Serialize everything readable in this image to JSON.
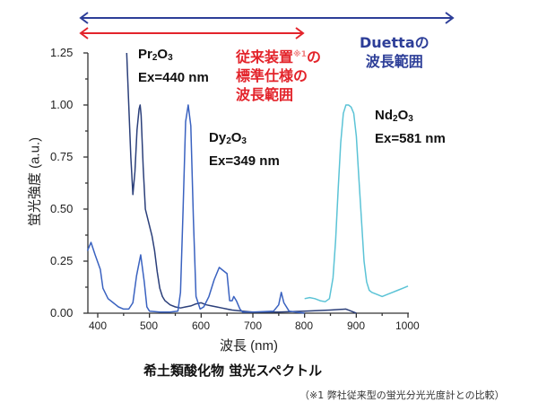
{
  "chart_data": {
    "type": "line",
    "title": "希土類酸化物 蛍光スペクトル",
    "xlabel": "波長 (nm)",
    "ylabel": "蛍光強度 (a.u.)",
    "xlim": [
      380,
      1000
    ],
    "ylim": [
      0,
      1.25
    ],
    "xticks": [
      400,
      500,
      600,
      700,
      800,
      900,
      1000
    ],
    "xtick_labels": [
      "400",
      "500",
      "600",
      "700",
      "800",
      "900",
      "1000"
    ],
    "yticks": [
      0,
      0.25,
      0.5,
      0.75,
      1.0,
      1.25
    ],
    "ytick_labels": [
      "0.00",
      "0.25",
      "0.50",
      "0.75",
      "1.00",
      "1.25"
    ],
    "grid": false,
    "series": [
      {
        "name": "Pr2O3 (Ex=440 nm)",
        "color": "#2b3f7a",
        "x": [
          456,
          460,
          464,
          468,
          472,
          476,
          480,
          482,
          484,
          488,
          492,
          496,
          500,
          505,
          510,
          515,
          520,
          525,
          530,
          540,
          550,
          560,
          570,
          580,
          590,
          600,
          610,
          620,
          630,
          640,
          650,
          660,
          680,
          700,
          750,
          800,
          850,
          880,
          890,
          900
        ],
        "y": [
          1.25,
          1.0,
          0.75,
          0.57,
          0.68,
          0.88,
          0.98,
          1.0,
          0.95,
          0.7,
          0.5,
          0.46,
          0.42,
          0.37,
          0.3,
          0.2,
          0.12,
          0.08,
          0.06,
          0.04,
          0.03,
          0.025,
          0.03,
          0.035,
          0.045,
          0.05,
          0.04,
          0.035,
          0.03,
          0.025,
          0.02,
          0.015,
          0.01,
          0.005,
          0.005,
          0.01,
          0.015,
          0.02,
          0.01,
          0.0
        ]
      },
      {
        "name": "Dy2O3 (Ex=349 nm)",
        "color": "#3a62c0",
        "x": [
          380,
          387,
          395,
          405,
          410,
          420,
          430,
          440,
          450,
          460,
          468,
          475,
          483,
          490,
          495,
          500,
          520,
          540,
          555,
          560,
          565,
          570,
          575,
          580,
          585,
          590,
          598,
          605,
          615,
          625,
          635,
          645,
          650,
          655,
          660,
          663,
          668,
          675,
          680,
          700,
          740,
          750,
          755,
          760,
          770,
          800
        ],
        "y": [
          0.3,
          0.34,
          0.28,
          0.21,
          0.12,
          0.07,
          0.05,
          0.03,
          0.02,
          0.02,
          0.05,
          0.18,
          0.28,
          0.15,
          0.03,
          0.01,
          0.005,
          0.005,
          0.01,
          0.1,
          0.5,
          0.92,
          1.0,
          0.9,
          0.45,
          0.08,
          0.02,
          0.03,
          0.08,
          0.16,
          0.22,
          0.2,
          0.19,
          0.06,
          0.06,
          0.08,
          0.06,
          0.02,
          0.005,
          0.005,
          0.01,
          0.04,
          0.1,
          0.05,
          0.01,
          0.0
        ]
      },
      {
        "name": "Nd2O3 (Ex=581 nm)",
        "color": "#5bc3d6",
        "x": [
          800,
          810,
          820,
          830,
          840,
          848,
          855,
          860,
          865,
          870,
          875,
          880,
          885,
          890,
          895,
          900,
          905,
          910,
          915,
          920,
          925,
          930,
          940,
          950,
          960,
          970,
          980,
          990,
          1000
        ],
        "y": [
          0.07,
          0.075,
          0.07,
          0.06,
          0.055,
          0.07,
          0.17,
          0.35,
          0.6,
          0.82,
          0.96,
          1.0,
          1.0,
          0.99,
          0.96,
          0.85,
          0.65,
          0.45,
          0.25,
          0.15,
          0.11,
          0.1,
          0.09,
          0.08,
          0.09,
          0.1,
          0.11,
          0.12,
          0.13
        ]
      }
    ],
    "annotations": [
      {
        "text": "Pr2O3 Ex=440 nm"
      },
      {
        "text": "Dy2O3 Ex=349 nm"
      },
      {
        "text": "Nd2O3 Ex=581 nm"
      },
      {
        "text": "従来装置※1の標準仕様の波長範囲",
        "color": "#e3242b"
      },
      {
        "text": "Duettaの波長範囲",
        "color": "#2d3e98"
      }
    ],
    "ranges": [
      {
        "name": "Duetta",
        "from": 380,
        "to": 1000,
        "color": "#2d3e98"
      },
      {
        "name": "従来装置",
        "from": 380,
        "to": 800,
        "color": "#e3242b"
      }
    ]
  },
  "labels": {
    "pr": {
      "name": "Pr",
      "sub1": "2",
      "name2": "O",
      "sub2": "3",
      "ex": "Ex=440 nm"
    },
    "dy": {
      "name": "Dy",
      "sub1": "2",
      "name2": "O",
      "sub2": "3",
      "ex": "Ex=349 nm"
    },
    "nd": {
      "name": "Nd",
      "sub1": "2",
      "name2": "O",
      "sub2": "3",
      "ex": "Ex=581 nm"
    },
    "conventional": {
      "line1": "従来装置",
      "note": "※1",
      "line1_end": "の",
      "line2": "標準仕様の",
      "line3": "波長範囲"
    },
    "duetta": {
      "line1": "Duettaの",
      "line2": "波長範囲"
    }
  },
  "axis": {
    "ylabel": "蛍光強度 (a.u.)",
    "xlabel": "波長 (nm)",
    "yticks": [
      "1.25",
      "1.00",
      "0.75",
      "0.50",
      "0.25",
      "0.00"
    ],
    "xticks": [
      "400",
      "500",
      "600",
      "700",
      "800",
      "900",
      "1000"
    ]
  },
  "caption": "希土類酸化物 蛍光スペクトル",
  "footnote": "（※1 弊社従来型の蛍光分光光度計との比較）"
}
